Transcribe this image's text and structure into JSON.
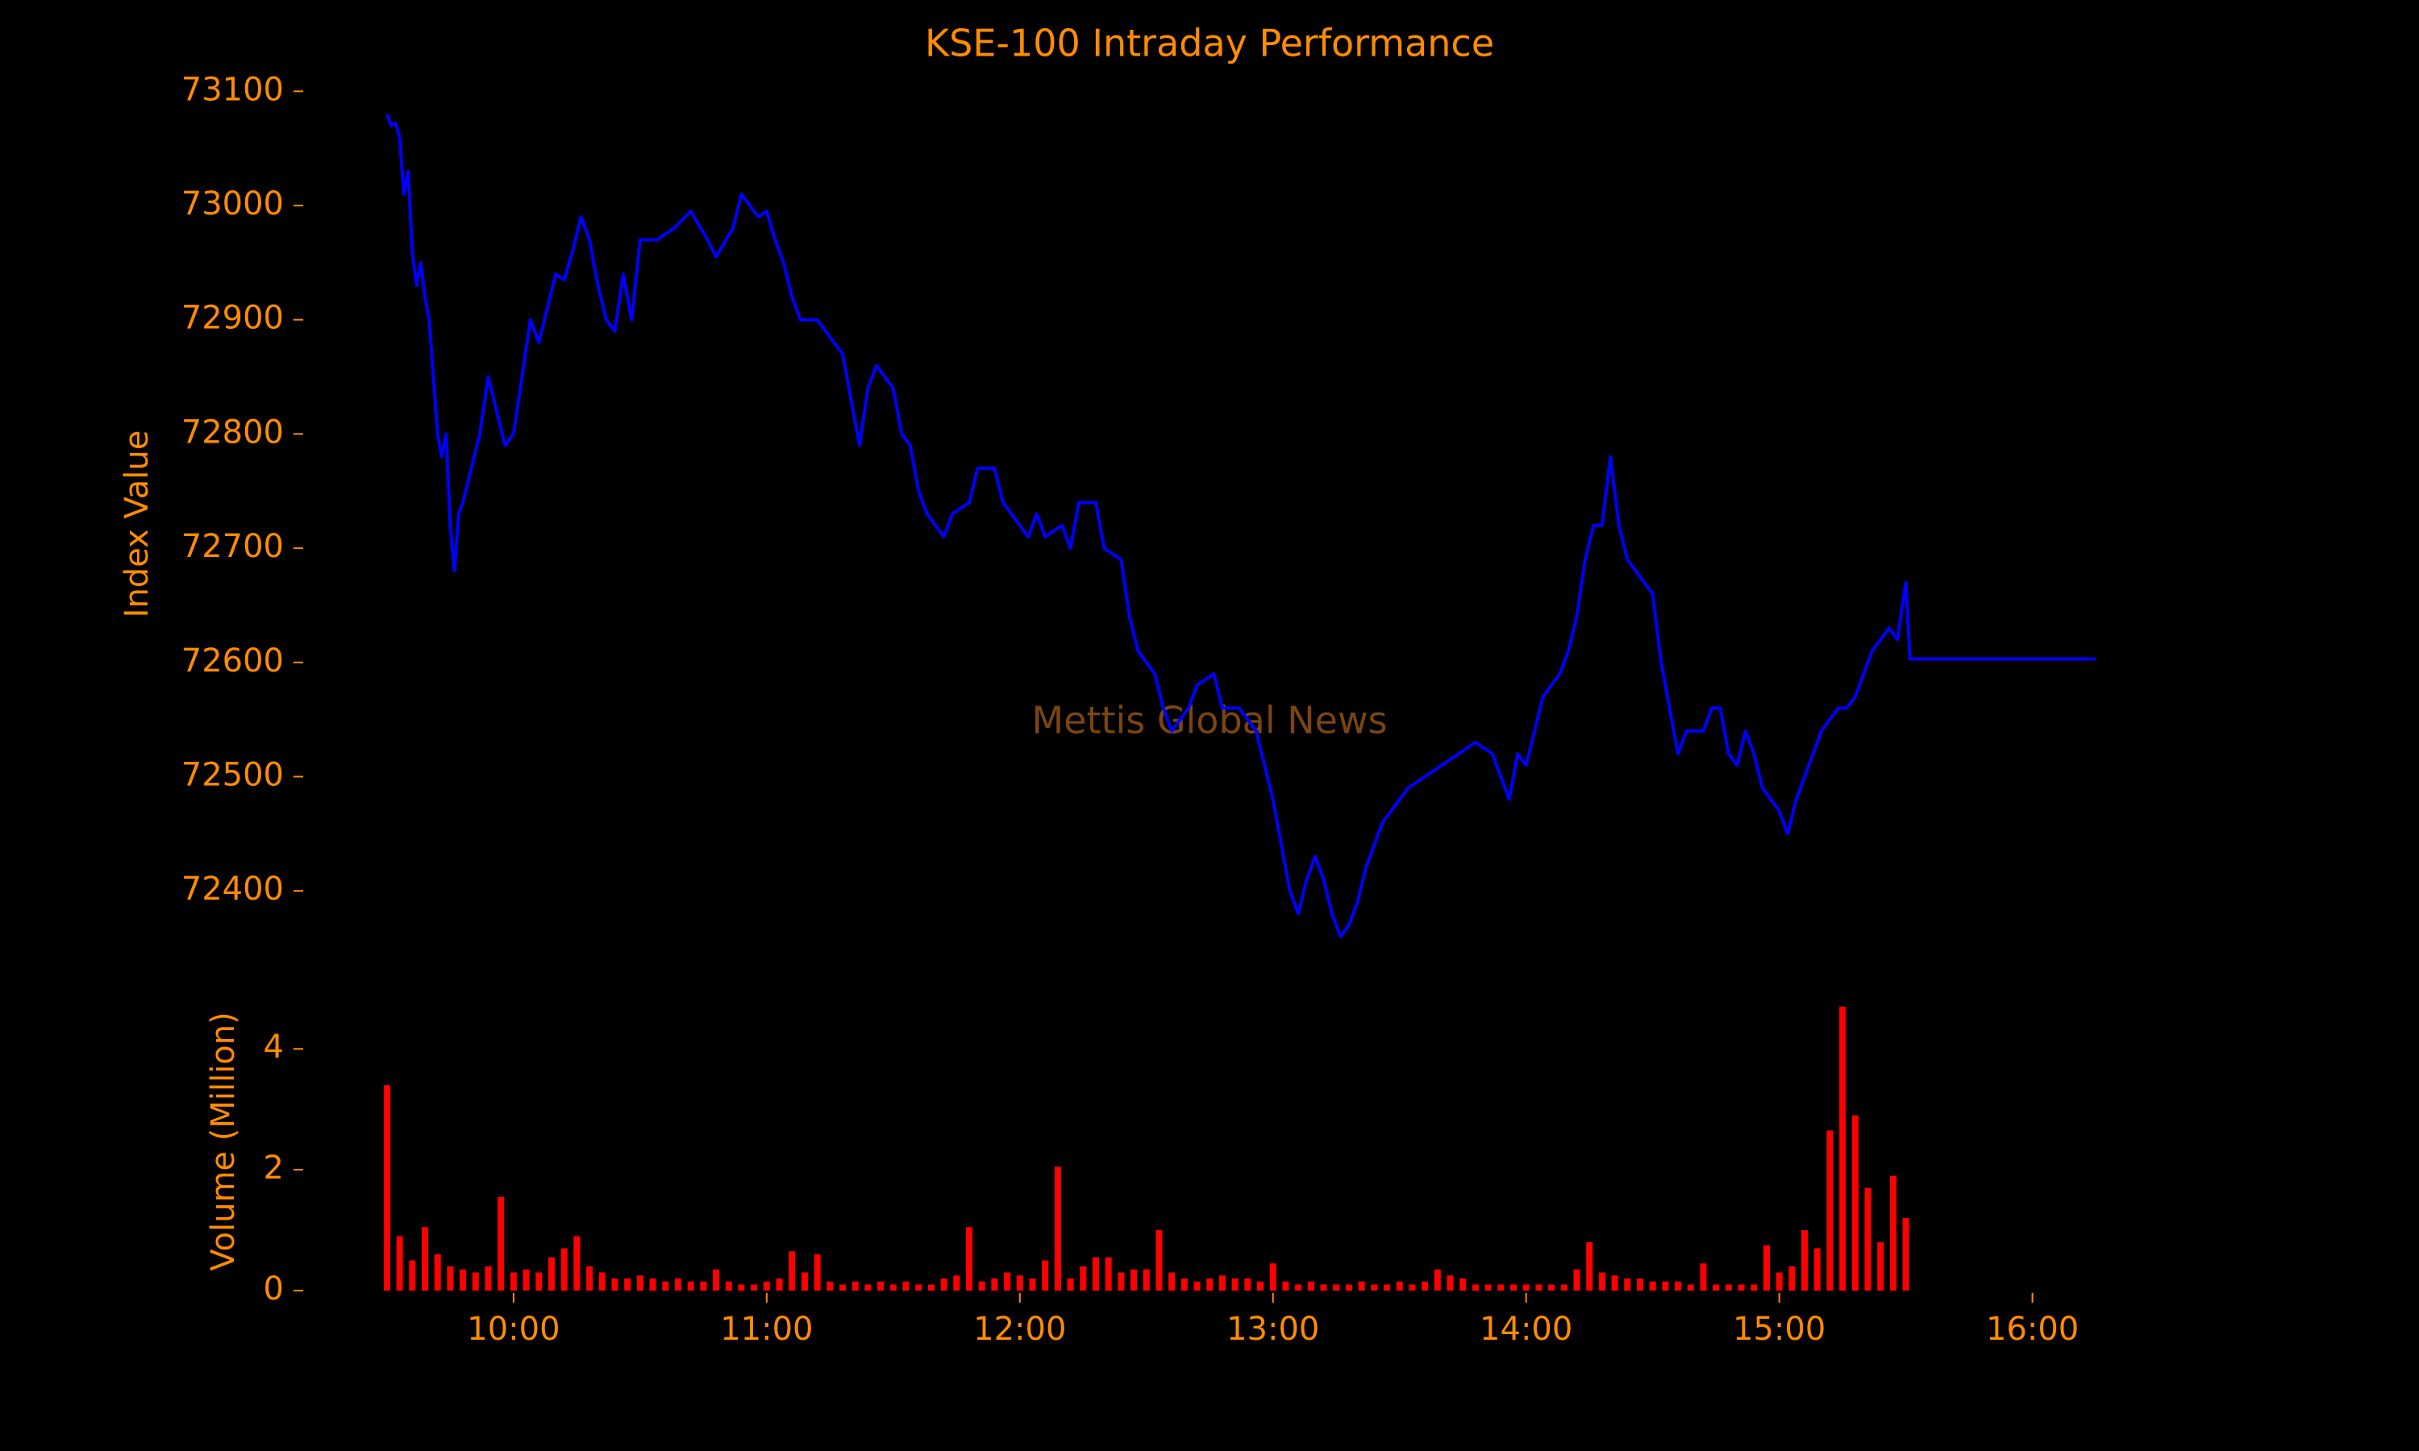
{
  "chart_data": [
    {
      "type": "line",
      "title": "KSE-100 Intraday Performance",
      "ylabel": "Index Value",
      "watermark": "Mettis Global News",
      "color": "#0000ff",
      "xlim": [
        "09:26",
        "16:19"
      ],
      "ylim": [
        72350,
        73115
      ],
      "yticks": [
        72400,
        72500,
        72600,
        72700,
        72800,
        72900,
        73000,
        73100
      ],
      "x": [
        "09:30",
        "09:31",
        "09:32",
        "09:33",
        "09:34",
        "09:35",
        "09:36",
        "09:37",
        "09:38",
        "09:39",
        "09:40",
        "09:41",
        "09:42",
        "09:43",
        "09:44",
        "09:45",
        "09:46",
        "09:47",
        "09:48",
        "09:50",
        "09:52",
        "09:54",
        "09:56",
        "09:58",
        "10:00",
        "10:02",
        "10:04",
        "10:06",
        "10:08",
        "10:10",
        "10:12",
        "10:14",
        "10:16",
        "10:18",
        "10:20",
        "10:22",
        "10:24",
        "10:26",
        "10:28",
        "10:30",
        "10:34",
        "10:38",
        "10:42",
        "10:46",
        "10:48",
        "10:52",
        "10:54",
        "10:58",
        "11:00",
        "11:02",
        "11:04",
        "11:06",
        "11:08",
        "11:12",
        "11:16",
        "11:18",
        "11:20",
        "11:22",
        "11:24",
        "11:26",
        "11:30",
        "11:32",
        "11:34",
        "11:36",
        "11:38",
        "11:42",
        "11:44",
        "11:48",
        "11:50",
        "11:54",
        "11:56",
        "12:00",
        "12:02",
        "12:04",
        "12:06",
        "12:10",
        "12:12",
        "12:14",
        "12:18",
        "12:20",
        "12:24",
        "12:26",
        "12:28",
        "12:32",
        "12:34",
        "12:36",
        "12:40",
        "12:42",
        "12:46",
        "12:48",
        "12:52",
        "12:56",
        "12:58",
        "13:00",
        "13:02",
        "13:04",
        "13:06",
        "13:08",
        "13:10",
        "13:12",
        "13:14",
        "13:16",
        "13:18",
        "13:20",
        "13:22",
        "13:24",
        "13:26",
        "13:28",
        "13:32",
        "13:36",
        "13:40",
        "13:44",
        "13:48",
        "13:52",
        "13:54",
        "13:56",
        "13:58",
        "14:00",
        "14:02",
        "14:04",
        "14:06",
        "14:08",
        "14:10",
        "14:12",
        "14:14",
        "14:16",
        "14:18",
        "14:20",
        "14:22",
        "14:24",
        "14:28",
        "14:30",
        "14:32",
        "14:34",
        "14:36",
        "14:38",
        "14:42",
        "14:44",
        "14:46",
        "14:48",
        "14:50",
        "14:52",
        "14:54",
        "14:56",
        "14:58",
        "15:00",
        "15:02",
        "15:04",
        "15:06",
        "15:08",
        "15:10",
        "15:12",
        "15:14",
        "15:16",
        "15:18",
        "15:20",
        "15:22",
        "15:24",
        "15:26",
        "15:28",
        "15:30",
        "15:31",
        "16:15"
      ],
      "values": [
        73080,
        73070,
        73072,
        73060,
        73010,
        73030,
        72960,
        72930,
        72950,
        72920,
        72900,
        72850,
        72800,
        72780,
        72800,
        72720,
        72680,
        72730,
        72740,
        72770,
        72800,
        72850,
        72820,
        72790,
        72800,
        72850,
        72900,
        72880,
        72910,
        72940,
        72935,
        72960,
        72990,
        72970,
        72930,
        72900,
        72890,
        72940,
        72900,
        72970,
        72970,
        72980,
        72995,
        72970,
        72955,
        72980,
        73010,
        72990,
        72995,
        72970,
        72950,
        72920,
        72900,
        72900,
        72880,
        72870,
        72830,
        72790,
        72840,
        72860,
        72840,
        72800,
        72790,
        72750,
        72730,
        72710,
        72730,
        72740,
        72770,
        72770,
        72740,
        72720,
        72710,
        72730,
        72710,
        72720,
        72700,
        72740,
        72740,
        72700,
        72690,
        72640,
        72610,
        72590,
        72560,
        72540,
        72560,
        72580,
        72590,
        72560,
        72560,
        72540,
        72510,
        72480,
        72440,
        72400,
        72380,
        72410,
        72430,
        72410,
        72380,
        72360,
        72370,
        72390,
        72420,
        72440,
        72460,
        72470,
        72490,
        72500,
        72510,
        72520,
        72530,
        72520,
        72500,
        72480,
        72520,
        72510,
        72540,
        72570,
        72580,
        72590,
        72610,
        72640,
        72690,
        72720,
        72720,
        72780,
        72720,
        72690,
        72670,
        72660,
        72600,
        72560,
        72520,
        72540,
        72540,
        72560,
        72560,
        72520,
        72510,
        72540,
        72520,
        72490,
        72480,
        72470,
        72450,
        72480,
        72500,
        72520,
        72540,
        72550,
        72560,
        72560,
        72570,
        72590,
        72610,
        72620,
        72630,
        72620,
        72670,
        72603,
        72603
      ]
    },
    {
      "type": "bar",
      "ylabel": "Volume (Million)",
      "color": "#ff0000",
      "xlim": [
        "09:26",
        "16:19"
      ],
      "xticks": [
        "10:00",
        "11:00",
        "12:00",
        "13:00",
        "14:00",
        "15:00",
        "16:00"
      ],
      "ylim": [
        0,
        4.75
      ],
      "yticks": [
        0,
        2,
        4
      ],
      "x": [
        "09:30",
        "09:33",
        "09:36",
        "09:39",
        "09:42",
        "09:45",
        "09:48",
        "09:51",
        "09:54",
        "09:57",
        "10:00",
        "10:03",
        "10:06",
        "10:09",
        "10:12",
        "10:15",
        "10:18",
        "10:21",
        "10:24",
        "10:27",
        "10:30",
        "10:33",
        "10:36",
        "10:39",
        "10:42",
        "10:45",
        "10:48",
        "10:51",
        "10:54",
        "10:57",
        "11:00",
        "11:03",
        "11:06",
        "11:09",
        "11:12",
        "11:15",
        "11:18",
        "11:21",
        "11:24",
        "11:27",
        "11:30",
        "11:33",
        "11:36",
        "11:39",
        "11:42",
        "11:45",
        "11:48",
        "11:51",
        "11:54",
        "11:57",
        "12:00",
        "12:03",
        "12:06",
        "12:09",
        "12:12",
        "12:15",
        "12:18",
        "12:21",
        "12:24",
        "12:27",
        "12:30",
        "12:33",
        "12:36",
        "12:39",
        "12:42",
        "12:45",
        "12:48",
        "12:51",
        "12:54",
        "12:57",
        "13:00",
        "13:03",
        "13:06",
        "13:09",
        "13:12",
        "13:15",
        "13:18",
        "13:21",
        "13:24",
        "13:27",
        "13:30",
        "13:33",
        "13:36",
        "13:39",
        "13:42",
        "13:45",
        "13:48",
        "13:51",
        "13:54",
        "13:57",
        "14:00",
        "14:03",
        "14:06",
        "14:09",
        "14:12",
        "14:15",
        "14:18",
        "14:21",
        "14:24",
        "14:27",
        "14:30",
        "14:33",
        "14:36",
        "14:39",
        "14:42",
        "14:45",
        "14:48",
        "14:51",
        "14:54",
        "14:57",
        "15:00",
        "15:03",
        "15:06",
        "15:09",
        "15:12",
        "15:15",
        "15:18",
        "15:21",
        "15:24",
        "15:27",
        "15:30"
      ],
      "values": [
        3.4,
        0.9,
        0.5,
        1.05,
        0.6,
        0.4,
        0.35,
        0.3,
        0.4,
        1.55,
        0.3,
        0.35,
        0.3,
        0.55,
        0.7,
        0.9,
        0.4,
        0.3,
        0.2,
        0.2,
        0.25,
        0.2,
        0.15,
        0.2,
        0.15,
        0.15,
        0.35,
        0.15,
        0.1,
        0.1,
        0.15,
        0.2,
        0.65,
        0.3,
        0.6,
        0.15,
        0.1,
        0.15,
        0.1,
        0.15,
        0.1,
        0.15,
        0.1,
        0.1,
        0.2,
        0.25,
        1.05,
        0.15,
        0.2,
        0.3,
        0.25,
        0.2,
        0.5,
        2.05,
        0.2,
        0.4,
        0.55,
        0.55,
        0.3,
        0.35,
        0.35,
        1.0,
        0.3,
        0.2,
        0.15,
        0.2,
        0.25,
        0.2,
        0.2,
        0.15,
        0.45,
        0.15,
        0.1,
        0.15,
        0.1,
        0.1,
        0.1,
        0.15,
        0.1,
        0.1,
        0.15,
        0.1,
        0.15,
        0.35,
        0.25,
        0.2,
        0.1,
        0.1,
        0.1,
        0.1,
        0.1,
        0.1,
        0.1,
        0.1,
        0.35,
        0.8,
        0.3,
        0.25,
        0.2,
        0.2,
        0.15,
        0.15,
        0.15,
        0.1,
        0.45,
        0.1,
        0.1,
        0.1,
        0.1,
        0.75,
        0.3,
        0.4,
        1.0,
        0.7,
        2.65,
        4.7,
        2.9,
        1.7,
        0.8,
        1.9,
        1.2
      ]
    }
  ]
}
